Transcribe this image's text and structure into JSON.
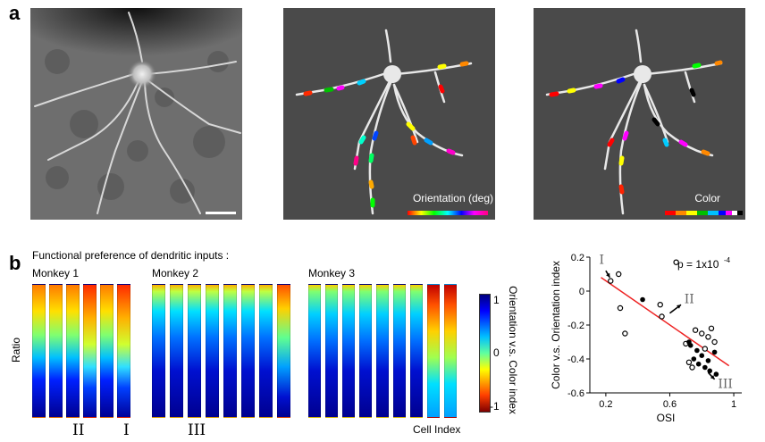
{
  "panel_a": {
    "letter": "a",
    "image2_label": "Orientation (deg)",
    "image3_label": "Color"
  },
  "panel_b": {
    "letter": "b",
    "title": "Functional preference of dendritic inputs :",
    "monkeys": [
      "Monkey 1",
      "Monkey 2",
      "Monkey 3"
    ],
    "ylabel": "Ratio",
    "xlabel": "Cell Index",
    "colorbar": {
      "label": "Orientation v.s. Color index",
      "tick_max": "1",
      "tick_mid": "0",
      "tick_min": "-1"
    },
    "markers": {
      "ii": "II",
      "i": "I",
      "iii": "III"
    }
  },
  "chart_data": {
    "type": "scatter",
    "xlabel": "OSI",
    "ylabel": "Color v.s. Orientation index",
    "xlim": [
      0.1,
      1.05
    ],
    "ylim": [
      -0.6,
      0.2
    ],
    "xticks": [
      "0.2",
      "0.6",
      "1"
    ],
    "yticks": [
      "0.2",
      "0",
      "-0.2",
      "-0.4",
      "-0.6"
    ],
    "annotation": "p = 1x10",
    "annotation_exp": "-4",
    "labels": [
      "I",
      "II",
      "III"
    ],
    "fit_line": {
      "x": [
        0.17,
        0.97
      ],
      "y": [
        0.08,
        -0.44
      ]
    },
    "filled": {
      "x": [
        0.43,
        0.72,
        0.73,
        0.75,
        0.78,
        0.8,
        0.82,
        0.84,
        0.85,
        0.88,
        0.89,
        0.77
      ],
      "y": [
        -0.05,
        -0.3,
        -0.32,
        -0.4,
        -0.43,
        -0.38,
        -0.45,
        -0.41,
        -0.47,
        -0.36,
        -0.49,
        -0.35
      ]
    },
    "hollow": {
      "x": [
        0.23,
        0.28,
        0.29,
        0.32,
        0.54,
        0.55,
        0.64,
        0.72,
        0.76,
        0.8,
        0.84,
        0.86,
        0.88,
        0.82,
        0.74,
        0.7
      ],
      "y": [
        0.06,
        0.1,
        -0.1,
        -0.25,
        -0.08,
        -0.15,
        0.17,
        -0.42,
        -0.23,
        -0.25,
        -0.27,
        -0.22,
        -0.3,
        -0.34,
        -0.45,
        -0.31
      ]
    }
  }
}
